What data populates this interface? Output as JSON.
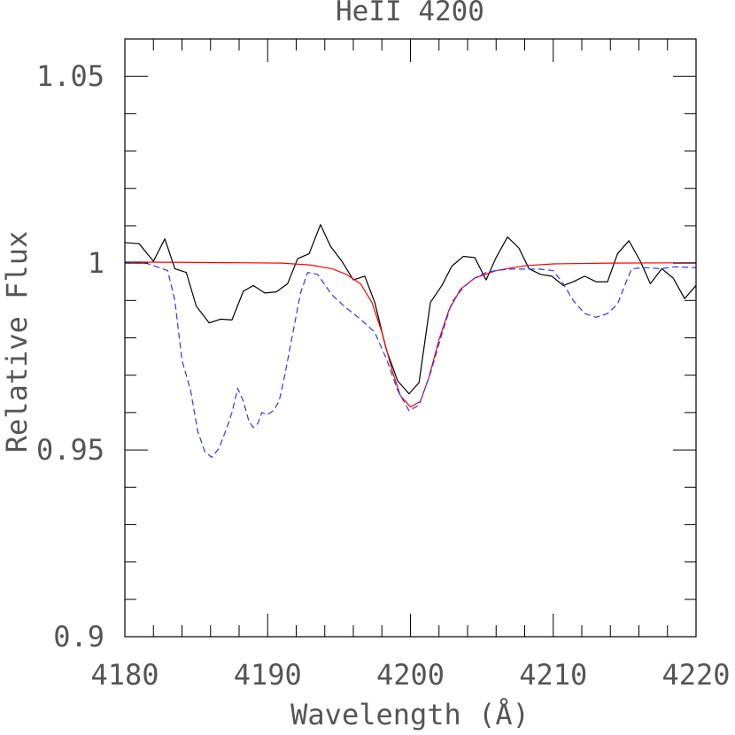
{
  "chart_data": {
    "type": "line",
    "title": "HeII 4200",
    "xlabel": "Wavelength (Å)",
    "ylabel": "Relative Flux",
    "xlim": [
      4180,
      4220
    ],
    "ylim": [
      0.9,
      1.06
    ],
    "x_ticks": [
      4180,
      4190,
      4200,
      4210,
      4220
    ],
    "x_tick_labels": [
      "4180",
      "4190",
      "4200",
      "4210",
      "4220"
    ],
    "y_ticks": [
      0.9,
      0.95,
      1.0,
      1.05
    ],
    "y_tick_labels": [
      "0.9",
      "0.95",
      "1",
      "1.05"
    ],
    "grid": false,
    "series": [
      {
        "style": "solid",
        "color": "#000000",
        "x": [
          4180,
          4181,
          4182,
          4182.8,
          4183.5,
          4184.3,
          4185,
          4185.9,
          4186.7,
          4187.5,
          4188.3,
          4189,
          4189.8,
          4190.6,
          4191.4,
          4192.1,
          4192.9,
          4193.7,
          4194.4,
          4195.2,
          4196,
          4196.8,
          4197.5,
          4198.3,
          4199.1,
          4199.9,
          4200.6,
          4201.4,
          4202.2,
          4202.9,
          4203.7,
          4204.5,
          4205.3,
          4206,
          4206.8,
          4207.6,
          4208.3,
          4209.1,
          4209.9,
          4210.7,
          4211.4,
          4212.2,
          4213,
          4213.8,
          4214.5,
          4215.3,
          4216.1,
          4216.8,
          4217.6,
          4218.4,
          4219.2,
          4220
        ],
        "y": [
          1.0055,
          1.0052,
          1.0005,
          1.0065,
          0.9985,
          0.9975,
          0.9885,
          0.984,
          0.985,
          0.9848,
          0.9925,
          0.994,
          0.992,
          0.9923,
          0.9945,
          1.0012,
          1.0025,
          1.0103,
          1.0045,
          1.0005,
          0.9955,
          0.9965,
          0.9895,
          0.977,
          0.9685,
          0.965,
          0.968,
          0.9895,
          0.994,
          0.9992,
          1.0018,
          1.0015,
          0.9955,
          1.0015,
          1.007,
          1.004,
          0.9985,
          0.997,
          0.9965,
          0.994,
          0.995,
          0.9965,
          0.995,
          0.995,
          1.0025,
          1.006,
          1.0005,
          0.9945,
          0.9985,
          0.996,
          0.9905,
          0.994
        ]
      },
      {
        "style": "solid",
        "color": "#ff0000",
        "x": [
          4180,
          4184,
          4188,
          4191,
          4193,
          4194.5,
          4195.5,
          4196.5,
          4197.3,
          4198,
          4198.7,
          4199.3,
          4200,
          4200.7,
          4201.3,
          4202,
          4202.7,
          4203.5,
          4204.5,
          4206,
          4208,
          4210,
          4214,
          4220
        ],
        "y": [
          1.0003,
          1.0002,
          1.0001,
          1.0,
          0.9995,
          0.9985,
          0.997,
          0.9945,
          0.9895,
          0.9815,
          0.9715,
          0.9645,
          0.9615,
          0.963,
          0.9695,
          0.9795,
          0.9875,
          0.993,
          0.996,
          0.998,
          0.9993,
          0.9998,
          1.0,
          1.0001
        ]
      },
      {
        "style": "dashed",
        "color": "#3333ff",
        "x": [
          4180,
          4181.5,
          4183,
          4183.5,
          4184,
          4184.6,
          4185.1,
          4185.6,
          4186.1,
          4186.6,
          4187.1,
          4187.5,
          4187.9,
          4188.3,
          4188.7,
          4189,
          4189.3,
          4189.6,
          4190,
          4190.4,
          4190.8,
          4191.2,
          4191.7,
          4192.3,
          4192.8,
          4193.5,
          4194.5,
          4195.5,
          4196.5,
          4197.5,
          4198.3,
          4199.1,
          4199.9,
          4200.6,
          4201.4,
          4202.2,
          4202.9,
          4203.7,
          4204.5,
          4205.3,
          4206,
          4207,
          4208,
          4209,
          4210,
          4210.7,
          4211.4,
          4212.2,
          4213,
          4213.8,
          4214.5,
          4215,
          4215.5,
          4216.5,
          4217.5,
          4218.5,
          4220
        ],
        "y": [
          1.0002,
          1.0,
          0.998,
          0.99,
          0.974,
          0.966,
          0.955,
          0.9495,
          0.948,
          0.9505,
          0.9555,
          0.96,
          0.9665,
          0.963,
          0.9575,
          0.956,
          0.957,
          0.96,
          0.9595,
          0.9605,
          0.963,
          0.97,
          0.98,
          0.992,
          0.9975,
          0.997,
          0.9915,
          0.988,
          0.985,
          0.9815,
          0.9745,
          0.966,
          0.9605,
          0.962,
          0.9705,
          0.981,
          0.9895,
          0.9935,
          0.996,
          0.9975,
          0.998,
          0.9984,
          0.9984,
          0.9984,
          0.998,
          0.9945,
          0.99,
          0.9865,
          0.9855,
          0.9865,
          0.989,
          0.994,
          0.9985,
          0.9988,
          0.9985,
          0.999,
          0.9988
        ]
      }
    ]
  }
}
